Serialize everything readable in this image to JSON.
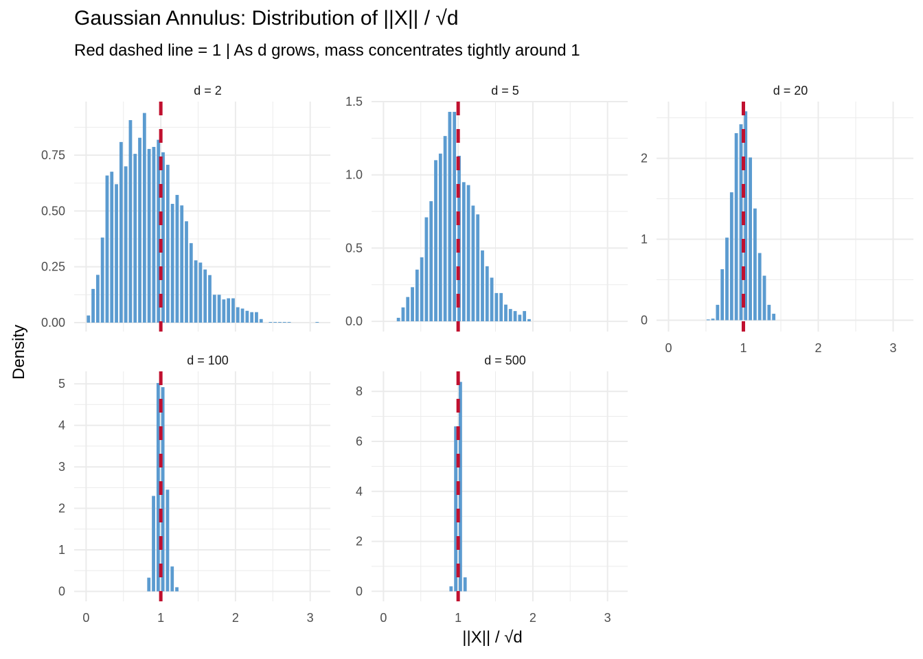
{
  "chart_data": {
    "type": "bar",
    "title": "Gaussian Annulus: Distribution of ||X|| / √d",
    "subtitle": "Red dashed line = 1  |  As d grows, mass concentrates tightly around 1",
    "xlabel": "||X|| / √d",
    "ylabel": "Density",
    "xlim": [
      -0.16,
      3.27
    ],
    "x_ticks": [
      "0",
      "1",
      "2",
      "3"
    ],
    "x_tick_values": [
      0,
      1,
      2,
      3
    ],
    "reference_line": {
      "x": 1,
      "color": "#c0102f",
      "style": "dashed"
    },
    "bar_color": "#5b9bd0",
    "grid": true,
    "panels": [
      {
        "strip": "d = 2",
        "ylim": [
          -0.04,
          0.99
        ],
        "y_ticks": [
          "0.00",
          "0.25",
          "0.50",
          "0.75"
        ],
        "y_tick_values": [
          0,
          0.25,
          0.5,
          0.75
        ],
        "bin_width": 0.0625,
        "bin_start": 0.031,
        "values": [
          0.032,
          0.151,
          0.214,
          0.381,
          0.659,
          0.676,
          0.62,
          0.809,
          0.7,
          0.907,
          0.756,
          0.828,
          0.939,
          0.778,
          0.787,
          0.819,
          0.763,
          0.707,
          0.532,
          0.572,
          0.525,
          0.454,
          0.356,
          0.279,
          0.269,
          0.238,
          0.213,
          0.125,
          0.125,
          0.104,
          0.109,
          0.109,
          0.069,
          0.063,
          0.053,
          0.047,
          0.047,
          0.016,
          0,
          0.003,
          0.003,
          0.003,
          0.003,
          0.003,
          0,
          0,
          0,
          0,
          0,
          0.003
        ]
      },
      {
        "strip": "d = 5",
        "ylim": [
          -0.07,
          1.5
        ],
        "y_ticks": [
          "0.0",
          "0.5",
          "1.0",
          "1.5"
        ],
        "y_tick_values": [
          0,
          0.5,
          1.0,
          1.5
        ],
        "bin_width": 0.0625,
        "bin_start": 0.2,
        "values": [
          0.024,
          0.095,
          0.166,
          0.233,
          0.353,
          0.437,
          0.71,
          0.82,
          1.1,
          1.145,
          1.265,
          1.43,
          1.43,
          1.13,
          0.95,
          0.93,
          0.79,
          0.73,
          0.484,
          0.376,
          0.298,
          0.193,
          0.193,
          0.114,
          0.084,
          0.07,
          0.045,
          0.07,
          0.015
        ]
      },
      {
        "strip": "d = 20",
        "ylim": [
          -0.14,
          2.7
        ],
        "y_ticks": [
          "0",
          "1",
          "2"
        ],
        "y_tick_values": [
          0,
          1,
          2
        ],
        "bin_width": 0.0625,
        "bin_start": 0.53,
        "values": [
          0.01,
          0.02,
          0.19,
          0.63,
          1.02,
          1.58,
          2.31,
          2.42,
          2.58,
          2.01,
          1.38,
          0.83,
          0.55,
          0.19,
          0.08
        ]
      },
      {
        "strip": "d = 100",
        "ylim": [
          -0.24,
          5.3
        ],
        "y_ticks": [
          "0",
          "1",
          "2",
          "3",
          "4",
          "5"
        ],
        "y_tick_values": [
          0,
          1,
          2,
          3,
          4,
          5
        ],
        "bin_width": 0.0625,
        "bin_start": 0.84,
        "values": [
          0.33,
          2.3,
          5.02,
          4.92,
          2.45,
          0.6,
          0.1
        ]
      },
      {
        "strip": "d = 500",
        "ylim": [
          -0.4,
          8.8
        ],
        "y_ticks": [
          "0",
          "2",
          "4",
          "6",
          "8"
        ],
        "y_tick_values": [
          0,
          2,
          4,
          6,
          8
        ],
        "bin_width": 0.0625,
        "bin_start": 0.905,
        "values": [
          0.2,
          6.6,
          8.38,
          0.56
        ]
      }
    ]
  }
}
